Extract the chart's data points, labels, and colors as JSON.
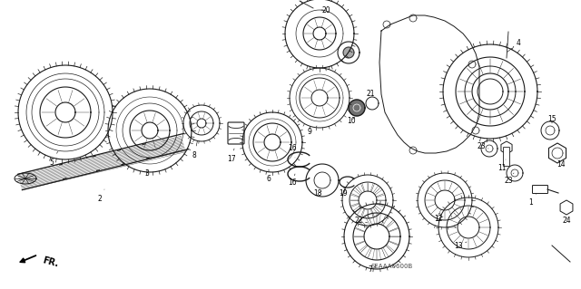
{
  "bg_color": "#ffffff",
  "watermark": "SEAAA0600B",
  "fr_label": "FR.",
  "gc": "#1a1a1a",
  "fig_w": 6.4,
  "fig_h": 3.19,
  "dpi": 100
}
